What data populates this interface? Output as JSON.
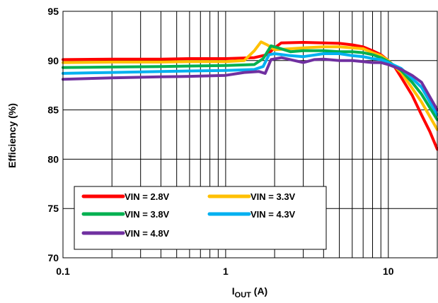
{
  "chart_data": {
    "type": "line",
    "title": "",
    "xlabel": "I",
    "xlabel_sub": "OUT",
    "xlabel_unit": " (A)",
    "ylabel": "Efficiency (%)",
    "xscale": "log",
    "xlim": [
      0.1,
      20
    ],
    "ylim": [
      70,
      95
    ],
    "grid": "major and minor x, major y",
    "legend_position": "lower-left",
    "xticks": [
      {
        "value": 0.1,
        "label": "0.1"
      },
      {
        "value": 1,
        "label": "1"
      },
      {
        "value": 10,
        "label": "10"
      }
    ],
    "yticks": [
      {
        "value": 70,
        "label": "70"
      },
      {
        "value": 75,
        "label": "75"
      },
      {
        "value": 80,
        "label": "80"
      },
      {
        "value": 85,
        "label": "85"
      },
      {
        "value": 90,
        "label": "90"
      },
      {
        "value": 95,
        "label": "95"
      }
    ],
    "series": [
      {
        "name": "VIN = 2.8V",
        "color": "#ff0000",
        "points": [
          [
            0.1,
            90.1
          ],
          [
            0.2,
            90.15
          ],
          [
            0.4,
            90.15
          ],
          [
            0.6,
            90.2
          ],
          [
            1.0,
            90.2
          ],
          [
            1.5,
            90.3
          ],
          [
            1.8,
            90.6
          ],
          [
            2.0,
            91.3
          ],
          [
            2.2,
            91.8
          ],
          [
            3,
            91.85
          ],
          [
            4,
            91.8
          ],
          [
            5,
            91.75
          ],
          [
            6,
            91.6
          ],
          [
            7,
            91.4
          ],
          [
            8,
            91.0
          ],
          [
            9,
            90.6
          ],
          [
            10,
            90.0
          ],
          [
            11,
            89.3
          ],
          [
            12,
            88.3
          ],
          [
            14,
            86.5
          ],
          [
            16,
            84.5
          ],
          [
            18,
            82.8
          ],
          [
            20,
            81.0
          ]
        ]
      },
      {
        "name": "VIN = 3.3V",
        "color": "#ffc000",
        "points": [
          [
            0.1,
            89.8
          ],
          [
            0.2,
            89.85
          ],
          [
            0.4,
            89.85
          ],
          [
            0.6,
            89.9
          ],
          [
            1.0,
            89.9
          ],
          [
            1.3,
            90.0
          ],
          [
            1.5,
            91.0
          ],
          [
            1.65,
            91.9
          ],
          [
            1.8,
            91.6
          ],
          [
            2.0,
            91.1
          ],
          [
            2.5,
            91.2
          ],
          [
            3,
            91.3
          ],
          [
            4,
            91.4
          ],
          [
            5,
            91.4
          ],
          [
            6,
            91.3
          ],
          [
            7,
            91.2
          ],
          [
            8,
            90.8
          ],
          [
            9,
            90.5
          ],
          [
            10,
            90.0
          ],
          [
            12,
            88.8
          ],
          [
            14,
            87.2
          ],
          [
            16,
            85.8
          ],
          [
            20,
            83.0
          ]
        ]
      },
      {
        "name": "VIN = 3.8V",
        "color": "#00b050",
        "points": [
          [
            0.1,
            89.3
          ],
          [
            0.2,
            89.35
          ],
          [
            0.4,
            89.4
          ],
          [
            0.6,
            89.45
          ],
          [
            1.0,
            89.5
          ],
          [
            1.5,
            89.6
          ],
          [
            1.7,
            90.2
          ],
          [
            1.9,
            91.5
          ],
          [
            2.1,
            91.3
          ],
          [
            2.5,
            90.9
          ],
          [
            3,
            91.0
          ],
          [
            4,
            91.0
          ],
          [
            5,
            90.9
          ],
          [
            6,
            90.9
          ],
          [
            7,
            90.8
          ],
          [
            8,
            90.6
          ],
          [
            9,
            90.3
          ],
          [
            10,
            89.9
          ],
          [
            12,
            89.0
          ],
          [
            14,
            87.8
          ],
          [
            16,
            86.6
          ],
          [
            20,
            84.0
          ]
        ]
      },
      {
        "name": "VIN = 4.3V",
        "color": "#00b0f0",
        "points": [
          [
            0.1,
            88.7
          ],
          [
            0.2,
            88.8
          ],
          [
            0.4,
            88.9
          ],
          [
            0.6,
            88.95
          ],
          [
            1.0,
            89.0
          ],
          [
            1.5,
            89.1
          ],
          [
            1.7,
            89.4
          ],
          [
            1.85,
            90.6
          ],
          [
            2.0,
            90.7
          ],
          [
            2.5,
            90.5
          ],
          [
            3,
            90.4
          ],
          [
            4,
            90.7
          ],
          [
            5,
            90.7
          ],
          [
            6,
            90.5
          ],
          [
            7,
            90.4
          ],
          [
            8,
            90.2
          ],
          [
            9,
            90.1
          ],
          [
            10,
            89.8
          ],
          [
            12,
            89.2
          ],
          [
            14,
            88.2
          ],
          [
            16,
            87.3
          ],
          [
            20,
            84.5
          ]
        ]
      },
      {
        "name": "VIN = 4.8V",
        "color": "#7030a0",
        "points": [
          [
            0.1,
            88.1
          ],
          [
            0.2,
            88.25
          ],
          [
            0.4,
            88.35
          ],
          [
            0.6,
            88.4
          ],
          [
            1.0,
            88.5
          ],
          [
            1.3,
            88.8
          ],
          [
            1.6,
            88.9
          ],
          [
            1.75,
            88.7
          ],
          [
            1.9,
            90.1
          ],
          [
            2.2,
            90.3
          ],
          [
            2.5,
            90.1
          ],
          [
            3,
            89.8
          ],
          [
            3.5,
            90.1
          ],
          [
            4,
            90.15
          ],
          [
            5,
            90.0
          ],
          [
            6,
            90.0
          ],
          [
            7,
            89.9
          ],
          [
            8,
            89.8
          ],
          [
            9,
            89.8
          ],
          [
            10,
            89.6
          ],
          [
            12,
            89.1
          ],
          [
            14,
            88.5
          ],
          [
            16,
            87.8
          ],
          [
            20,
            85.0
          ]
        ]
      }
    ]
  }
}
